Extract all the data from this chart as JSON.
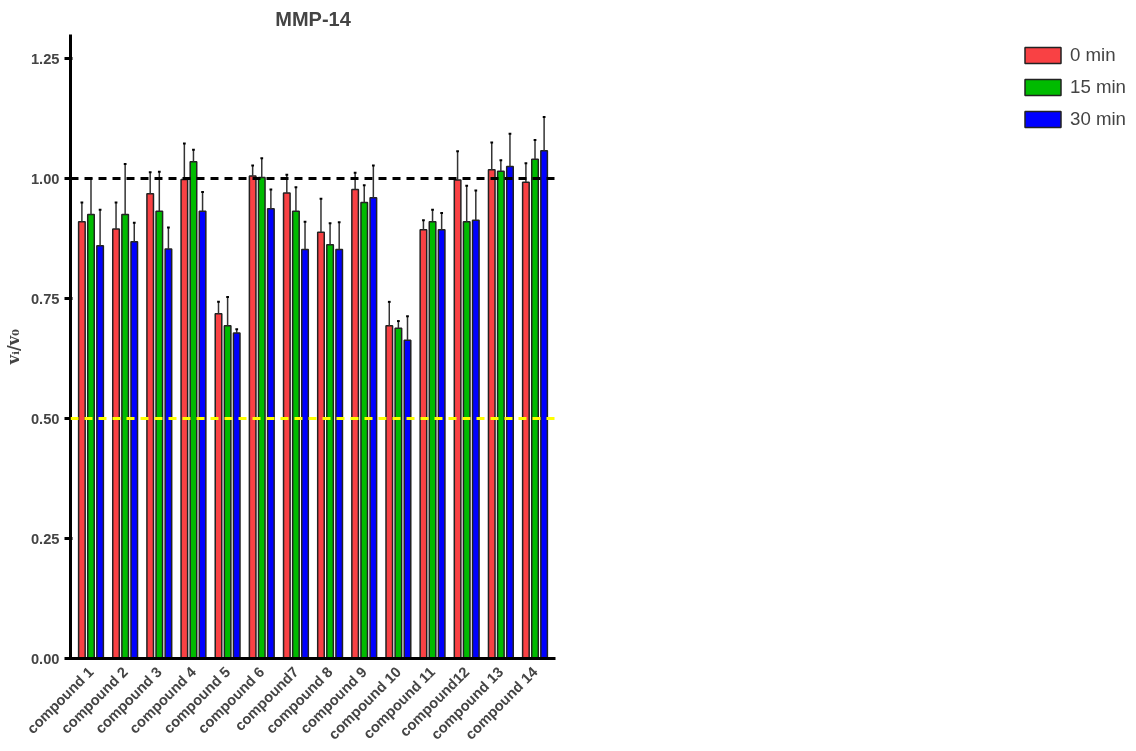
{
  "chart_data": {
    "type": "bar",
    "title": "MMP-14",
    "ylabel": "vᵢ/v₀",
    "categories": [
      "compound 1",
      "compound 2",
      "compound 3",
      "compound 4",
      "compound 5",
      "compound 6",
      "compound7",
      "compound 8",
      "compound 9",
      "compound 10",
      "compound 11",
      "compound12",
      "compound 13",
      "compound 14"
    ],
    "series": [
      {
        "name": "0 min",
        "color": "#f94144",
        "values": [
          0.91,
          0.895,
          0.968,
          0.998,
          0.718,
          1.005,
          0.97,
          0.888,
          0.977,
          0.693,
          0.893,
          0.997,
          1.018,
          0.992
        ],
        "errors": [
          [
            0.91,
            0.95
          ],
          [
            0.895,
            0.95
          ],
          [
            0.968,
            1.013
          ],
          [
            0.998,
            1.073
          ],
          [
            0.718,
            0.743
          ],
          [
            1.005,
            1.027
          ],
          [
            0.97,
            1.008
          ],
          [
            0.888,
            0.958
          ],
          [
            0.977,
            1.012
          ],
          [
            0.693,
            0.743
          ],
          [
            0.893,
            0.913
          ],
          [
            0.997,
            1.057
          ],
          [
            1.018,
            1.075
          ],
          [
            0.992,
            1.032
          ]
        ]
      },
      {
        "name": "15 min",
        "color": "#00bb00",
        "values": [
          0.925,
          0.925,
          0.932,
          1.035,
          0.693,
          1.002,
          0.932,
          0.862,
          0.95,
          0.688,
          0.91,
          0.91,
          1.015,
          1.04
        ],
        "errors": [
          [
            0.925,
            1.0
          ],
          [
            0.925,
            1.03
          ],
          [
            0.932,
            1.014
          ],
          [
            1.035,
            1.06
          ],
          [
            0.693,
            0.753
          ],
          [
            1.002,
            1.042
          ],
          [
            0.932,
            0.982
          ],
          [
            0.862,
            0.907
          ],
          [
            0.95,
            0.986
          ],
          [
            0.688,
            0.703
          ],
          [
            0.91,
            0.935
          ],
          [
            0.91,
            0.985
          ],
          [
            1.015,
            1.038
          ],
          [
            1.04,
            1.08
          ]
        ]
      },
      {
        "name": "30 min",
        "color": "#0000ff",
        "values": [
          0.86,
          0.868,
          0.853,
          0.932,
          0.678,
          0.937,
          0.852,
          0.852,
          0.96,
          0.663,
          0.893,
          0.913,
          1.025,
          1.058
        ],
        "errors": [
          [
            0.86,
            0.935
          ],
          [
            0.868,
            0.908
          ],
          [
            0.853,
            0.898
          ],
          [
            0.932,
            0.972
          ],
          [
            0.678,
            0.686
          ],
          [
            0.937,
            0.977
          ],
          [
            0.852,
            0.91
          ],
          [
            0.852,
            0.909
          ],
          [
            0.96,
            1.027
          ],
          [
            0.663,
            0.713
          ],
          [
            0.893,
            0.928
          ],
          [
            0.913,
            0.975
          ],
          [
            1.025,
            1.093
          ],
          [
            1.058,
            1.128
          ]
        ]
      }
    ],
    "ylim": [
      0,
      1.3
    ],
    "yticks": [
      {
        "value": 0,
        "label": "0.00"
      },
      {
        "value": 0.25,
        "label": "0.25"
      },
      {
        "value": 0.5,
        "label": "0.50"
      },
      {
        "value": 0.75,
        "label": "0.75"
      },
      {
        "value": 1,
        "label": "1.00"
      },
      {
        "value": 1.25,
        "label": "1.25"
      }
    ],
    "ref_lines": [
      {
        "axis": "y",
        "value": 1,
        "label": null,
        "color": "#000000",
        "line_style": "dashed"
      },
      {
        "axis": "y",
        "value": 0.5,
        "label": null,
        "color": "#ffff00",
        "line_style": "dashed"
      }
    ],
    "grid": false,
    "legend": "top right"
  }
}
